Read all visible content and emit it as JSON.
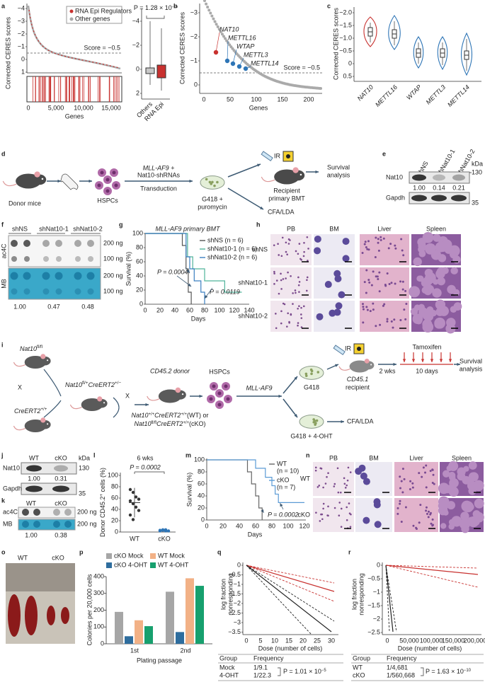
{
  "a": {
    "label": "a",
    "legend": [
      "RNA Epi Regulators",
      "Other genes"
    ],
    "y_label": "Corrected CERES scores",
    "yticks": [
      "−4",
      "−3",
      "−2",
      "−1",
      "0",
      "1"
    ],
    "score": "Score = −0.5",
    "xticks": [
      "0",
      "5,000",
      "10,000",
      "15,000"
    ],
    "x_label": "Genes",
    "box_yticks": [
      "−4",
      "−2",
      "0",
      "2"
    ],
    "box_p": {
      "text": "P = 1.28 × 10",
      "exp": "−10"
    },
    "box_categories": [
      "Others",
      "RNA Epi"
    ]
  },
  "b": {
    "label": "b",
    "y_label": "Corrected CERES scores",
    "yticks": [
      "−3",
      "−2",
      "−1",
      "0"
    ],
    "xticks": [
      "0",
      "50",
      "100",
      "150",
      "200"
    ],
    "x_label": "Genes",
    "genes": [
      "NAT10",
      "METTL16",
      "WTAP",
      "METTL3",
      "METTL14"
    ],
    "score": "Score = −0.5"
  },
  "c": {
    "label": "c",
    "y_label": "Corrected CERES scores",
    "yticks": [
      "−2.0",
      "−1.5",
      "−1.0",
      "−0.5",
      "0",
      "0.5"
    ],
    "genes": [
      "NAT10",
      "METTL16",
      "WTAP",
      "METTL3",
      "METTL14"
    ]
  },
  "d": {
    "label": "d",
    "donor": "Donor mice",
    "hspcs": "HSPCs",
    "vector": [
      "MLL-AF9 +",
      "Nat10-shRNAs"
    ],
    "transduction": "Transduction",
    "selection": [
      "G418 +",
      "puromycin"
    ],
    "ir": "IR",
    "recipient": [
      "Recipient",
      "primary BMT"
    ],
    "survival": [
      "Survival",
      "analysis"
    ],
    "assay": "CFA/LDA"
  },
  "e": {
    "label": "e",
    "lanes": [
      "shNS",
      "shNat10-1",
      "shNat10-2"
    ],
    "kda": "kDa",
    "bands": [
      {
        "name": "Nat10",
        "kda": "130"
      },
      {
        "name": "Gapdh",
        "kda": "35"
      }
    ],
    "quant": [
      "1.00",
      "0.14",
      "0.21"
    ]
  },
  "f": {
    "label": "f",
    "lanes": [
      "shNS",
      "shNat10-1",
      "shNat10-2"
    ],
    "rows": [
      "ac4C",
      "MB"
    ],
    "amounts": [
      "200 ng",
      "100 ng",
      "200 ng",
      "100 ng"
    ],
    "quant": [
      "1.00",
      "0.47",
      "0.48"
    ]
  },
  "g": {
    "label": "g",
    "title": "MLL-AF9 primary BMT",
    "legend": [
      "shNS (n = 6)",
      "shNat10-1 (n = 6)",
      "shNat10-2 (n = 6)"
    ],
    "y_label": "Survival (%)",
    "yticks": [
      "0",
      "20",
      "40",
      "60",
      "80",
      "100"
    ],
    "xticks": [
      "0",
      "20",
      "40",
      "60",
      "80",
      "100",
      "120",
      "140"
    ],
    "x_label": "Days",
    "p": [
      "P = 0.0004",
      "P = 0.0119"
    ]
  },
  "h": {
    "label": "h",
    "columns": [
      "PB",
      "BM",
      "Liver",
      "Spleen"
    ],
    "rows": [
      "shNS",
      "shNat10-1",
      "shNat10-2"
    ]
  },
  "i": {
    "label": "i",
    "parent1": [
      "Nat10",
      "fl/fl"
    ],
    "cross": "X",
    "parent2": [
      "CreERT2",
      "+/+"
    ],
    "f1": [
      "Nat10",
      "fl/+",
      "CreERT2",
      "+/−"
    ],
    "donor": "CD45.2 donor",
    "genotypes": [
      [
        "Nat10",
        "+/+",
        "CreERT2",
        "+/+",
        "(WT) or"
      ],
      [
        "Nat10",
        "fl/fl",
        "CreERT2",
        "+/+",
        "(cKO)"
      ]
    ],
    "hspcs": "HSPCs",
    "vector": "MLL-AF9",
    "dish1": "G418",
    "dish2": "G418 + 4-OHT",
    "ir": "IR",
    "recipient": [
      "CD45.1",
      "recipient"
    ],
    "wait": "2 wks",
    "drug": "Tamoxifen",
    "duration": "10 days",
    "survival": [
      "Survival",
      "analysis"
    ],
    "assay": "CFA/LDA"
  },
  "j": {
    "label": "j",
    "lanes": [
      "WT",
      "cKO"
    ],
    "kda": "kDa",
    "bands": [
      {
        "name": "Nat10",
        "kda": "130"
      },
      {
        "name": "Gapdh",
        "kda": "35"
      }
    ],
    "quant": [
      "1.00",
      "0.31"
    ]
  },
  "k": {
    "label": "k",
    "lanes": [
      "WT",
      "cKO"
    ],
    "rows": [
      "ac4C",
      "MB"
    ],
    "amounts": [
      "200 ng",
      "200 ng"
    ],
    "quant": [
      "1.00",
      "0.38"
    ]
  },
  "l": {
    "label": "l",
    "title": "6 wks",
    "p": "P = 0.0002",
    "y_label": [
      "Donor CD45.2",
      "+",
      " cells (%)"
    ],
    "yticks": [
      "0",
      "20",
      "40",
      "60",
      "80",
      "100"
    ],
    "categories": [
      "WT",
      "cKO"
    ]
  },
  "m": {
    "label": "m",
    "legend": [
      [
        "WT",
        "(n = 10)"
      ],
      [
        "cKO",
        "(n = 7)"
      ]
    ],
    "y_label": "Survival (%)",
    "yticks": [
      "0",
      "20",
      "40",
      "60",
      "80",
      "100"
    ],
    "xticks": [
      "0",
      "20",
      "40",
      "60",
      "80",
      "100",
      "120"
    ],
    "x_label": "Days",
    "p": "P = 0.0002"
  },
  "n": {
    "label": "n",
    "columns": [
      "PB",
      "BM",
      "Liver",
      "Spleen"
    ],
    "rows": [
      "WT",
      "cKO"
    ]
  },
  "o": {
    "label": "o",
    "groups": [
      "WT",
      "cKO"
    ]
  },
  "p": {
    "label": "p",
    "type": "bar",
    "series": [
      {
        "name": "cKO Mock",
        "color": "#a6a6a6",
        "values": [
          190,
          310
        ]
      },
      {
        "name": "cKO 4-OHT",
        "color": "#2e6d9e",
        "values": [
          45,
          70
        ]
      },
      {
        "name": "WT Mock",
        "color": "#f2b186",
        "values": [
          140,
          390
        ]
      },
      {
        "name": "WT 4-OHT",
        "color": "#17a06e",
        "values": [
          105,
          345
        ]
      }
    ],
    "categories": [
      "1st",
      "2nd"
    ],
    "ylim": [
      0,
      400
    ],
    "yticks": [
      0,
      100,
      200,
      300,
      400
    ],
    "y_label": "Colonies per 20,000 cells",
    "x_label": "Plating passage"
  },
  "q": {
    "label": "q",
    "y_label": [
      "log fraction",
      "nonresponding"
    ],
    "yticks": [
      "0",
      "−0.5",
      "−1",
      "−1.5",
      "−2",
      "−2.5",
      "−3",
      "−3.5"
    ],
    "xticks": [
      "0",
      "5",
      "10",
      "15",
      "20",
      "25",
      "30"
    ],
    "x_label": "Dose (number of cells)",
    "columns": [
      "Group",
      "Frequency"
    ],
    "rows": [
      [
        "Mock",
        "1/9.1"
      ],
      [
        "4-OHT",
        "1/22.3"
      ]
    ],
    "p": {
      "text": "P = 1.01 × 10",
      "exp": "−5"
    }
  },
  "r": {
    "label": "r",
    "y_label": [
      "log fraction",
      "nonresponding"
    ],
    "yticks": [
      "0",
      "−0.5",
      "−1",
      "−1.5",
      "−2",
      "−2.5"
    ],
    "xticks": [
      "0",
      "50,000",
      "100,000",
      "150,000",
      "200,000"
    ],
    "x_label": "Dose (number of cells)",
    "columns": [
      "Group",
      "Frequency"
    ],
    "rows": [
      [
        "WT",
        "1/4,681"
      ],
      [
        "cKO",
        "1/560,668"
      ]
    ],
    "p": {
      "text": "P = 1.63 × 10",
      "exp": "−10"
    }
  }
}
